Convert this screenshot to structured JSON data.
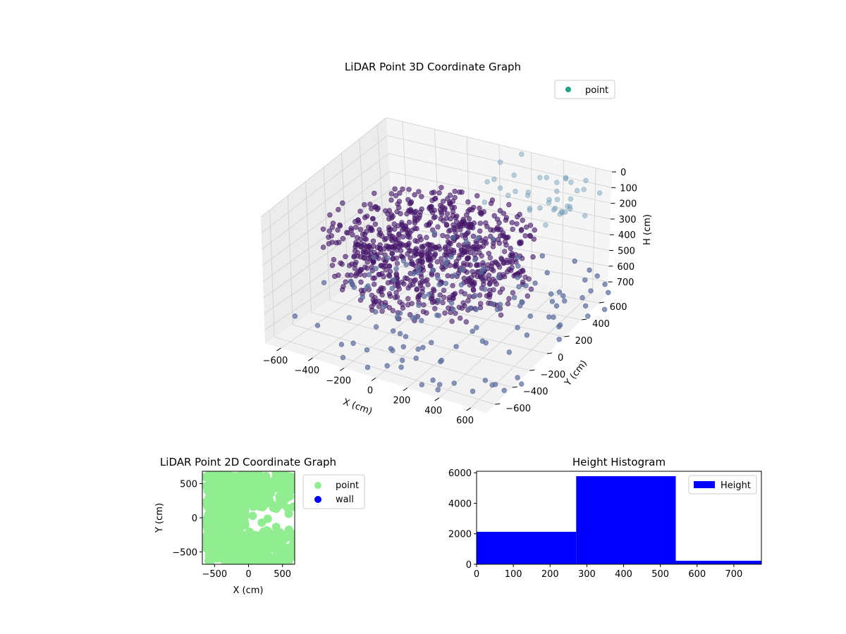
{
  "chart_data": [
    {
      "type": "scatter",
      "projection": "3d",
      "title": "LiDAR Point 3D Coordinate Graph",
      "xlabel": "X (cm)",
      "ylabel": "Y (cm)",
      "zlabel": "H (cm)",
      "xticks": [
        -600,
        -400,
        -200,
        0,
        200,
        400,
        600
      ],
      "yticks": [
        -600,
        -400,
        -200,
        0,
        200,
        400,
        600
      ],
      "zticks": [
        0,
        100,
        200,
        300,
        400,
        500,
        600,
        700
      ],
      "xlim": [
        -700,
        700
      ],
      "ylim": [
        -700,
        700
      ],
      "zlim": [
        0,
        780
      ],
      "z_inverted": true,
      "grid": true,
      "legend": {
        "position": "top-right",
        "entries": [
          {
            "label": "point",
            "color": "#21a08a"
          }
        ]
      },
      "colormap": "viridis",
      "point_color_dense": "#46186a",
      "point_color_sparse": "#5b6e9e"
    },
    {
      "type": "scatter",
      "title": "LiDAR Point 2D Coordinate Graph",
      "xlabel": "X (cm)",
      "ylabel": "Y (cm)",
      "xticks": [
        -500,
        0,
        500
      ],
      "yticks": [
        -500,
        0,
        500
      ],
      "xlim": [
        -680,
        680
      ],
      "ylim": [
        -680,
        680
      ],
      "series": [
        {
          "name": "point",
          "color": "#90ee90"
        },
        {
          "name": "wall",
          "color": "#0000ff"
        }
      ],
      "legend": "outside-right"
    },
    {
      "type": "bar",
      "subtype": "histogram",
      "title": "Height Histogram",
      "xticks": [
        0,
        100,
        200,
        300,
        400,
        500,
        600,
        700
      ],
      "yticks": [
        0,
        2000,
        4000,
        6000
      ],
      "xlim": [
        0,
        775
      ],
      "ylim": [
        0,
        6100
      ],
      "bins": [
        {
          "start": 0,
          "end": 271,
          "count": 2130
        },
        {
          "start": 271,
          "end": 542,
          "count": 5780
        },
        {
          "start": 542,
          "end": 775,
          "count": 230
        }
      ],
      "series": [
        {
          "name": "Height",
          "color": "#0000ff"
        }
      ],
      "legend": "top-right"
    }
  ]
}
